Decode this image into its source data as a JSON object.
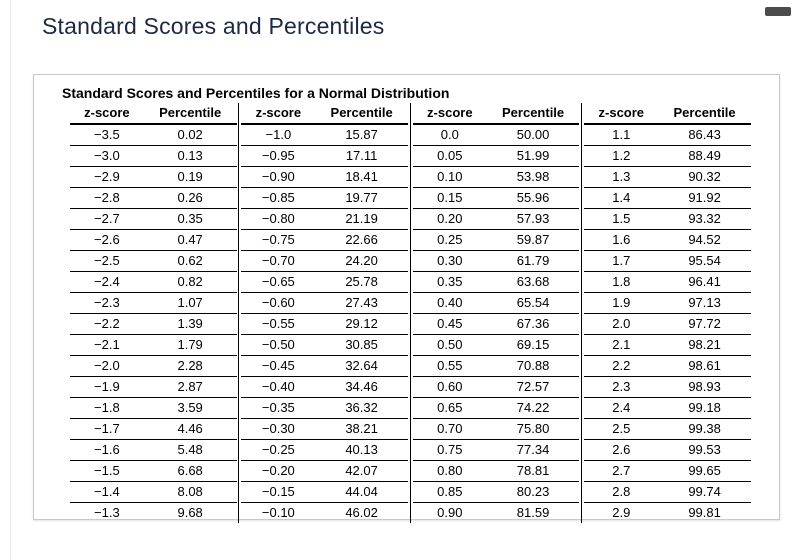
{
  "page": {
    "title": "Standard Scores and Percentiles"
  },
  "icons": {
    "top_right": "scrollbar-thumb"
  },
  "colors": {
    "page_title": "#1c2942",
    "rule": "#000000",
    "card_border": "#c9c9c9",
    "scrollbar_thumb": "#4c4c4c",
    "page_edge": "#e9e9e9"
  },
  "table": {
    "title": "Standard Scores and Percentiles for a Normal Distribution",
    "column_headers": [
      "z-score",
      "Percentile",
      "z-score",
      "Percentile",
      "z-score",
      "Percentile",
      "z-score",
      "Percentile"
    ],
    "rows": [
      [
        "−3.5",
        "0.02",
        "−1.0",
        "15.87",
        "0.0",
        "50.00",
        "1.1",
        "86.43"
      ],
      [
        "−3.0",
        "0.13",
        "−0.95",
        "17.11",
        "0.05",
        "51.99",
        "1.2",
        "88.49"
      ],
      [
        "−2.9",
        "0.19",
        "−0.90",
        "18.41",
        "0.10",
        "53.98",
        "1.3",
        "90.32"
      ],
      [
        "−2.8",
        "0.26",
        "−0.85",
        "19.77",
        "0.15",
        "55.96",
        "1.4",
        "91.92"
      ],
      [
        "−2.7",
        "0.35",
        "−0.80",
        "21.19",
        "0.20",
        "57.93",
        "1.5",
        "93.32"
      ],
      [
        "−2.6",
        "0.47",
        "−0.75",
        "22.66",
        "0.25",
        "59.87",
        "1.6",
        "94.52"
      ],
      [
        "−2.5",
        "0.62",
        "−0.70",
        "24.20",
        "0.30",
        "61.79",
        "1.7",
        "95.54"
      ],
      [
        "−2.4",
        "0.82",
        "−0.65",
        "25.78",
        "0.35",
        "63.68",
        "1.8",
        "96.41"
      ],
      [
        "−2.3",
        "1.07",
        "−0.60",
        "27.43",
        "0.40",
        "65.54",
        "1.9",
        "97.13"
      ],
      [
        "−2.2",
        "1.39",
        "−0.55",
        "29.12",
        "0.45",
        "67.36",
        "2.0",
        "97.72"
      ],
      [
        "−2.1",
        "1.79",
        "−0.50",
        "30.85",
        "0.50",
        "69.15",
        "2.1",
        "98.21"
      ],
      [
        "−2.0",
        "2.28",
        "−0.45",
        "32.64",
        "0.55",
        "70.88",
        "2.2",
        "98.61"
      ],
      [
        "−1.9",
        "2.87",
        "−0.40",
        "34.46",
        "0.60",
        "72.57",
        "2.3",
        "98.93"
      ],
      [
        "−1.8",
        "3.59",
        "−0.35",
        "36.32",
        "0.65",
        "74.22",
        "2.4",
        "99.18"
      ],
      [
        "−1.7",
        "4.46",
        "−0.30",
        "38.21",
        "0.70",
        "75.80",
        "2.5",
        "99.38"
      ],
      [
        "−1.6",
        "5.48",
        "−0.25",
        "40.13",
        "0.75",
        "77.34",
        "2.6",
        "99.53"
      ],
      [
        "−1.5",
        "6.68",
        "−0.20",
        "42.07",
        "0.80",
        "78.81",
        "2.7",
        "99.65"
      ],
      [
        "−1.4",
        "8.08",
        "−0.15",
        "44.04",
        "0.85",
        "80.23",
        "2.8",
        "99.74"
      ],
      [
        "−1.3",
        "9.68",
        "−0.10",
        "46.02",
        "0.90",
        "81.59",
        "2.9",
        "99.81"
      ]
    ]
  }
}
